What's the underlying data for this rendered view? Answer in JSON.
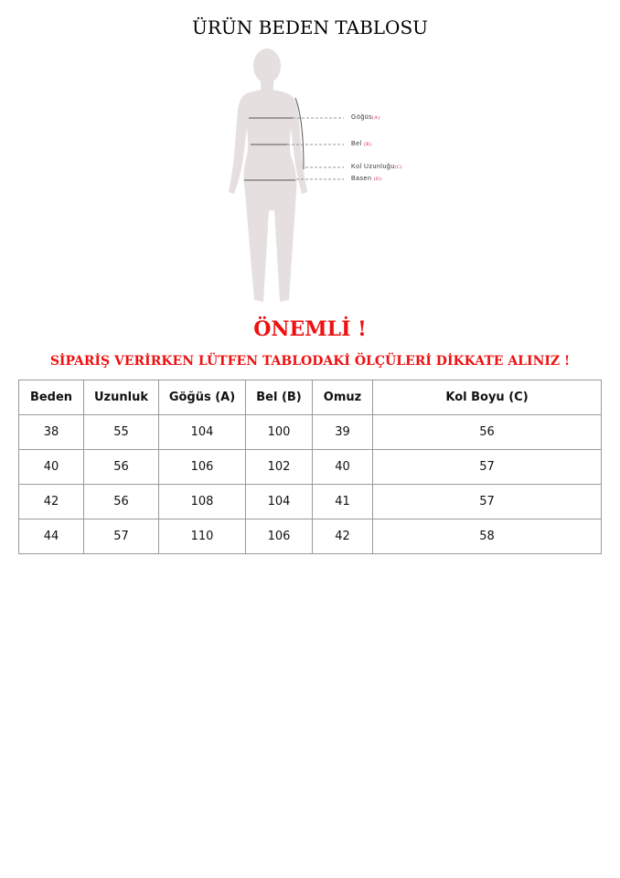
{
  "title": "ÜRÜN BEDEN TABLOSU",
  "figure": {
    "labels": [
      {
        "text": "Göğüs",
        "code": "(A)"
      },
      {
        "text": "Bel",
        "code": "(B)"
      },
      {
        "text": "Kol Uzunluğu",
        "code": "(C)"
      },
      {
        "text": "Basen",
        "code": "(D)"
      }
    ],
    "silhouette_color": "#e6dfdf"
  },
  "notice": {
    "heading": "ÖNEMLİ !",
    "message": "SİPARİŞ VERİRKEN LÜTFEN TABLODAKİ ÖLÇÜLERİ DİKKATE ALINIZ !",
    "color": "#ee1111"
  },
  "table": {
    "headers": [
      "Beden",
      "Uzunluk",
      "Göğüs (A)",
      "Bel (B)",
      "Omuz",
      "Kol Boyu (C)"
    ],
    "rows": [
      [
        "38",
        "55",
        "104",
        "100",
        "39",
        "56"
      ],
      [
        "40",
        "56",
        "106",
        "102",
        "40",
        "57"
      ],
      [
        "42",
        "56",
        "108",
        "104",
        "41",
        "57"
      ],
      [
        "44",
        "57",
        "110",
        "106",
        "42",
        "58"
      ]
    ]
  }
}
